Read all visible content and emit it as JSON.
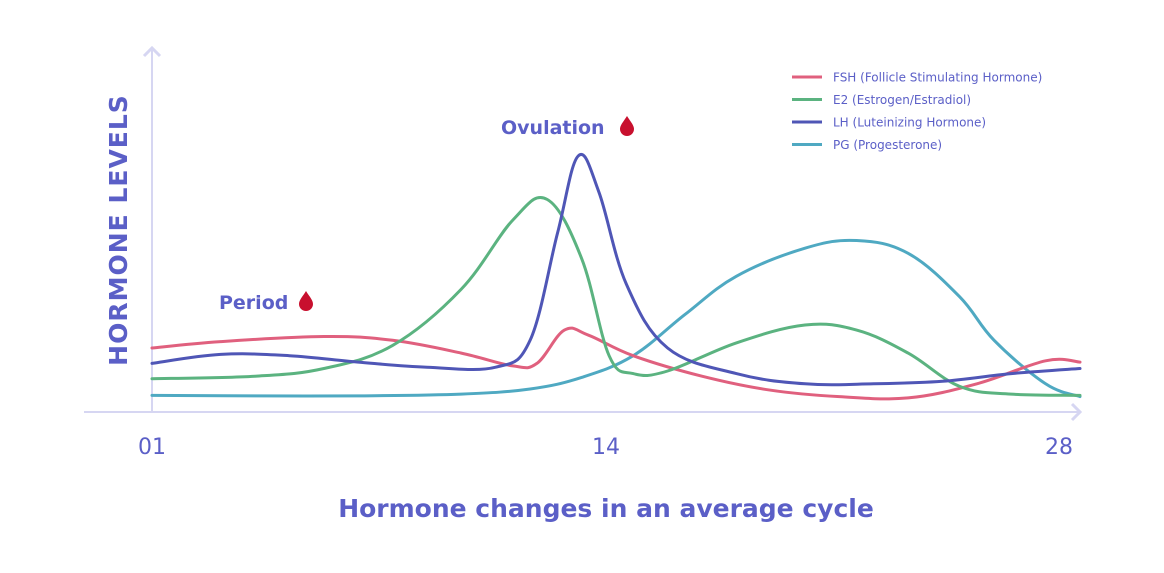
{
  "chart_data": {
    "type": "line",
    "title": "Hormone changes in an average cycle",
    "ylabel": "HORMONE LEVELS",
    "xlabel": "",
    "x_ticks": [
      "01",
      "14",
      "28"
    ],
    "xlim": [
      1,
      28
    ],
    "ylim": [
      0,
      100
    ],
    "grid": false,
    "legend_position": "top-right",
    "annotations": [
      {
        "text": "Period",
        "x": 5.5,
        "y": 40,
        "icon": "blood-drop-icon"
      },
      {
        "text": "Ovulation",
        "x": 14,
        "y": 100,
        "icon": "blood-drop-icon"
      }
    ],
    "series": [
      {
        "name": "FSH (Follicle Stimulating Hormone)",
        "color": "#e0607e",
        "x": [
          1,
          3,
          6,
          8,
          10,
          11.5,
          12.2,
          13,
          13.7,
          15,
          17,
          19,
          21,
          23,
          25,
          27,
          28
        ],
        "y": [
          25,
          27.5,
          29.5,
          28,
          23,
          18,
          19,
          32,
          30,
          22,
          14,
          8.5,
          6,
          5.5,
          11,
          20,
          19.5
        ]
      },
      {
        "name": "E2 (Estrogen/Estradiol)",
        "color": "#5bb380",
        "x": [
          1,
          4,
          6,
          8,
          10,
          11.5,
          12.5,
          13.5,
          14.3,
          15,
          16,
          18,
          20,
          21.5,
          23,
          24.5,
          26,
          28
        ],
        "y": [
          13,
          14,
          17,
          26,
          48,
          75,
          83,
          60,
          22,
          15,
          16,
          27,
          34,
          32,
          23,
          10,
          7,
          6.5
        ]
      },
      {
        "name": "LH (Luteinizing Hormone)",
        "color": "#4f56b6",
        "x": [
          1,
          3,
          5,
          7,
          9,
          11,
          12,
          12.8,
          13.4,
          14,
          14.8,
          16,
          18,
          20,
          22,
          24,
          26,
          28
        ],
        "y": [
          19,
          22.5,
          22,
          19.5,
          17.5,
          17.5,
          28,
          70,
          100,
          86,
          50,
          25,
          15,
          11,
          11,
          12,
          15,
          17
        ]
      },
      {
        "name": "PG (Progesterone)",
        "color": "#4fa9c2",
        "x": [
          1,
          4,
          7,
          10,
          12,
          13.5,
          15,
          16.5,
          18,
          20,
          21.5,
          23,
          24.5,
          25.5,
          27,
          28
        ],
        "y": [
          6.5,
          6.3,
          6.3,
          7,
          9,
          13.5,
          22,
          38,
          53,
          64,
          67,
          62,
          45,
          28,
          11,
          6
        ]
      }
    ]
  }
}
